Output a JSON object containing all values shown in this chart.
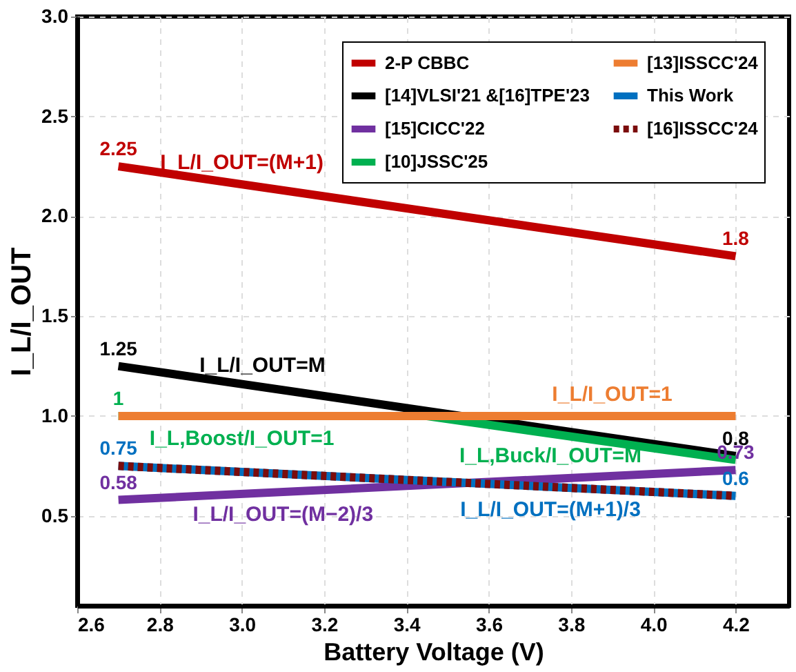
{
  "chart_data": {
    "type": "line",
    "xlabel": "Battery Voltage (V)",
    "ylabel": "I_L/I_OUT",
    "xlim": [
      2.6,
      4.33
    ],
    "xticks": [
      2.6,
      2.8,
      {
        "value": 3,
        "label": "3.0"
      },
      3.2,
      3.4,
      3.6,
      3.8,
      {
        "value": 4,
        "label": "4.0"
      },
      4.2
    ],
    "ylim": [
      0.05,
      3.0
    ],
    "yticks": [
      0.5,
      {
        "value": 1,
        "label": "1.0"
      },
      1.5,
      {
        "value": 2,
        "label": "2.0"
      },
      2.5,
      {
        "value": 3,
        "label": "3.0"
      }
    ],
    "grid": true,
    "legend": "top right",
    "marker": "none",
    "series": [
      {
        "name": "2-P CBBC",
        "color": "#c00000",
        "x": [
          2.7,
          4.2
        ],
        "values": [
          2.25,
          1.8
        ],
        "value_labels": [
          "2.25",
          "1.8"
        ]
      },
      {
        "name": "[14]VLSI'21 &[16]TPE'23",
        "color": "#000000",
        "x": [
          2.7,
          4.2
        ],
        "values": [
          1.25,
          0.8
        ],
        "value_labels": [
          "1.25",
          "0.8"
        ]
      },
      {
        "name": "[15]CICC'22",
        "color": "#7030a0",
        "x": [
          2.7,
          4.2
        ],
        "values": [
          0.58,
          0.73
        ],
        "value_labels": [
          "0.58",
          "0.73"
        ]
      },
      {
        "name": "[10]JSSC'25",
        "color": "#00b050",
        "x": [
          2.7,
          3.45,
          4.2
        ],
        "values": [
          1,
          1,
          0.78
        ],
        "value_labels": [
          "1",
          null,
          null
        ]
      },
      {
        "name": "[13]ISSCC'24",
        "color": "#ed7d31",
        "x": [
          2.7,
          4.2
        ],
        "values": [
          1,
          1
        ],
        "value_labels": [
          null,
          null
        ]
      },
      {
        "name": "This Work",
        "color": "#0070c0",
        "x": [
          2.7,
          4.2
        ],
        "values": [
          0.75,
          0.6
        ],
        "value_labels": [
          "0.75",
          "0.6"
        ]
      },
      {
        "name": "[16]ISSCC'24",
        "color": "#7b0c0c",
        "line_style": "dashed",
        "x": [
          2.7,
          4.2
        ],
        "values": [
          0.75,
          0.6
        ],
        "value_labels": [
          null,
          null
        ]
      }
    ],
    "annotations": [
      {
        "text": "I_L/I_OUT=(M+1)",
        "x": 3.0,
        "y": 2.16
      },
      {
        "text": "I_L/I_OUT=M",
        "x": 3.05,
        "y": 1.145
      },
      {
        "text": "I_L/I_OUT=1",
        "x": 3.9,
        "y": 1.0
      },
      {
        "text": "I_L,Boost/I_OUT=1",
        "x": 3.0,
        "y": 1.0
      },
      {
        "text": "I_L,Buck/I_OUT=M",
        "x": 3.75,
        "y": 0.912
      },
      {
        "text": "I_L/I_OUT=(M−2)/3",
        "x": 3.1,
        "y": 0.62
      },
      {
        "text": "I_L/I_OUT=(M+1)/3",
        "x": 3.75,
        "y": 0.645
      }
    ]
  }
}
